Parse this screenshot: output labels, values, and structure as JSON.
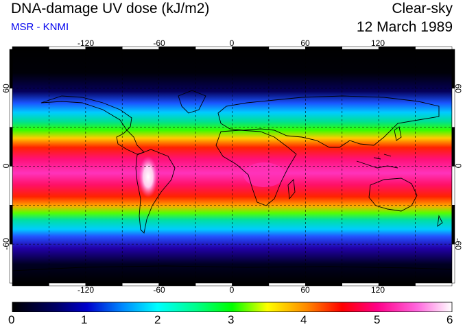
{
  "header": {
    "title": "DNA-damage UV dose (kJ/m2)",
    "institution": "MSR - KNMI",
    "condition": "Clear-sky",
    "date": "12 March 1989"
  },
  "map": {
    "longitude_ticks": [
      "-120",
      "-60",
      "0",
      "60",
      "120"
    ],
    "latitude_ticks": [
      "60",
      "0",
      "-60"
    ],
    "gridline_lon": [
      -150,
      -120,
      -90,
      -60,
      -30,
      0,
      30,
      60,
      90,
      120,
      150
    ],
    "gridline_lat": [
      -60,
      -30,
      0,
      30,
      60
    ]
  },
  "colorbar": {
    "labels": [
      "0",
      "1",
      "2",
      "3",
      "4",
      "5",
      "6"
    ],
    "min": 0,
    "max": 6,
    "unit": "kJ/m2"
  },
  "colors": {
    "subtitle": "#0000ee",
    "colorbar_stops": [
      "#000000",
      "#0000cc",
      "#00ffff",
      "#00ff00",
      "#ffff00",
      "#ff0000",
      "#ff00aa",
      "#ffffff"
    ]
  }
}
